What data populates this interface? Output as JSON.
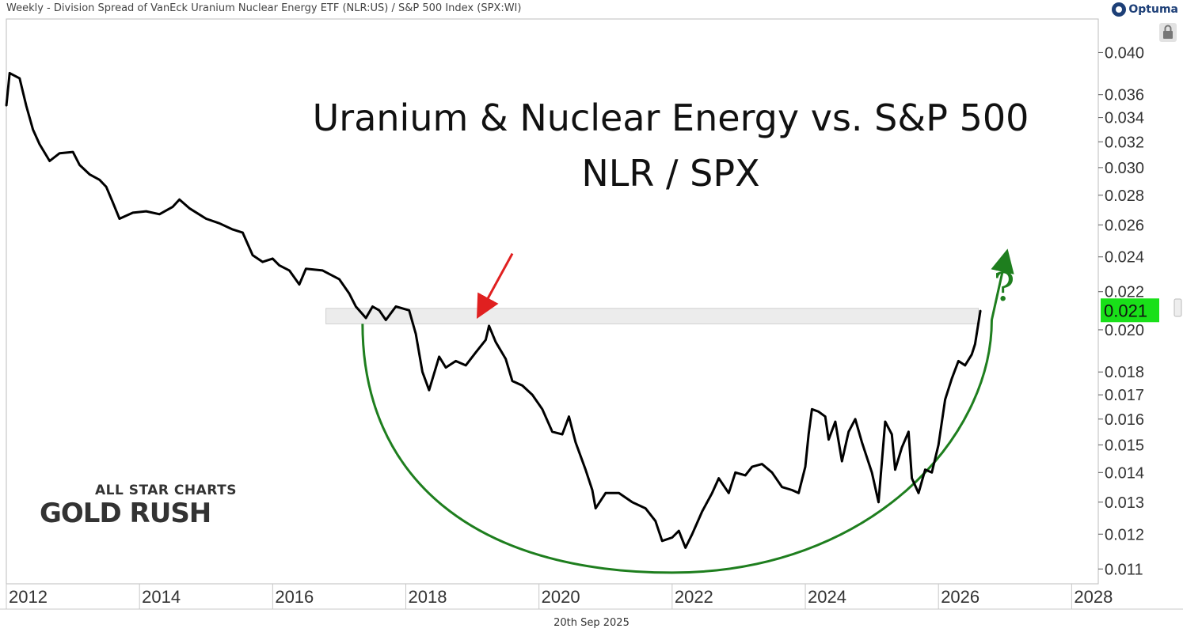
{
  "header": {
    "title": "Weekly - Division Spread of VanEck Uranium Nuclear Energy ETF (NLR:US) / S&P 500 Index (SPX:WI)",
    "logo_text": "Optuma"
  },
  "footer": {
    "date": "20th Sep 2025"
  },
  "branding": {
    "line1": "ALL STAR CHARTS",
    "line2": "GOLD RUSH"
  },
  "colors": {
    "line": "#000000",
    "arc": "#1e7e1e",
    "arrow": "#e02020",
    "last_value_bg": "#19e019",
    "band": "#ececec"
  },
  "chart_data": {
    "type": "line",
    "title": "Uranium & Nuclear Energy vs. S&P 500",
    "subtitle": "NLR / SPX",
    "xlabel": "",
    "ylabel": "",
    "y_scale": "log",
    "xlim": [
      2012.0,
      2028.4
    ],
    "ylim": [
      0.0106,
      0.0435
    ],
    "x_ticks": [
      "2012",
      "2014",
      "2016",
      "2018",
      "2020",
      "2022",
      "2024",
      "2026",
      "2028"
    ],
    "y_ticks": [
      "0.011",
      "0.012",
      "0.013",
      "0.014",
      "0.015",
      "0.016",
      "0.017",
      "0.018",
      "0.020",
      "0.022",
      "0.024",
      "0.026",
      "0.028",
      "0.030",
      "0.032",
      "0.034",
      "0.036",
      "0.040"
    ],
    "last_value": "0.021",
    "annotations": {
      "question_mark": "?"
    },
    "series": [
      {
        "values": [
          [
            2012.0,
            0.035
          ],
          [
            2012.05,
            0.038
          ],
          [
            2012.2,
            0.0375
          ],
          [
            2012.3,
            0.035
          ],
          [
            2012.4,
            0.033
          ],
          [
            2012.5,
            0.0318
          ],
          [
            2012.65,
            0.0305
          ],
          [
            2012.8,
            0.0311
          ],
          [
            2013.0,
            0.0312
          ],
          [
            2013.1,
            0.0302
          ],
          [
            2013.25,
            0.0295
          ],
          [
            2013.4,
            0.0291
          ],
          [
            2013.5,
            0.0286
          ],
          [
            2013.6,
            0.0275
          ],
          [
            2013.7,
            0.0264
          ],
          [
            2013.9,
            0.0268
          ],
          [
            2014.1,
            0.0269
          ],
          [
            2014.3,
            0.0267
          ],
          [
            2014.5,
            0.0272
          ],
          [
            2014.6,
            0.0277
          ],
          [
            2014.75,
            0.0271
          ],
          [
            2015.0,
            0.0264
          ],
          [
            2015.2,
            0.0261
          ],
          [
            2015.4,
            0.0257
          ],
          [
            2015.55,
            0.0255
          ],
          [
            2015.7,
            0.0241
          ],
          [
            2015.85,
            0.0237
          ],
          [
            2016.0,
            0.0239
          ],
          [
            2016.1,
            0.0235
          ],
          [
            2016.25,
            0.0232
          ],
          [
            2016.4,
            0.0224
          ],
          [
            2016.5,
            0.0233
          ],
          [
            2016.75,
            0.0232
          ],
          [
            2017.0,
            0.0227
          ],
          [
            2017.15,
            0.0219
          ],
          [
            2017.25,
            0.0212
          ],
          [
            2017.4,
            0.0206
          ],
          [
            2017.5,
            0.0212
          ],
          [
            2017.6,
            0.021
          ],
          [
            2017.7,
            0.0205
          ],
          [
            2017.85,
            0.0212
          ],
          [
            2018.05,
            0.021
          ],
          [
            2018.15,
            0.0198
          ],
          [
            2018.25,
            0.018
          ],
          [
            2018.35,
            0.0172
          ],
          [
            2018.5,
            0.0187
          ],
          [
            2018.6,
            0.0182
          ],
          [
            2018.75,
            0.0185
          ],
          [
            2018.9,
            0.0183
          ],
          [
            2019.05,
            0.0189
          ],
          [
            2019.2,
            0.0195
          ],
          [
            2019.25,
            0.0202
          ],
          [
            2019.35,
            0.0194
          ],
          [
            2019.5,
            0.0186
          ],
          [
            2019.6,
            0.0176
          ],
          [
            2019.75,
            0.0174
          ],
          [
            2019.9,
            0.017
          ],
          [
            2020.05,
            0.0164
          ],
          [
            2020.2,
            0.0155
          ],
          [
            2020.35,
            0.0154
          ],
          [
            2020.45,
            0.0161
          ],
          [
            2020.55,
            0.0151
          ],
          [
            2020.7,
            0.0141
          ],
          [
            2020.8,
            0.0134
          ],
          [
            2020.85,
            0.0128
          ],
          [
            2021.0,
            0.0133
          ],
          [
            2021.2,
            0.0133
          ],
          [
            2021.4,
            0.013
          ],
          [
            2021.6,
            0.0128
          ],
          [
            2021.75,
            0.0124
          ],
          [
            2021.85,
            0.0118
          ],
          [
            2022.0,
            0.0119
          ],
          [
            2022.1,
            0.0121
          ],
          [
            2022.2,
            0.0116
          ],
          [
            2022.3,
            0.012
          ],
          [
            2022.45,
            0.0127
          ],
          [
            2022.6,
            0.0133
          ],
          [
            2022.7,
            0.0138
          ],
          [
            2022.85,
            0.0133
          ],
          [
            2022.95,
            0.014
          ],
          [
            2023.1,
            0.0139
          ],
          [
            2023.2,
            0.0142
          ],
          [
            2023.35,
            0.0143
          ],
          [
            2023.5,
            0.014
          ],
          [
            2023.65,
            0.0135
          ],
          [
            2023.8,
            0.0134
          ],
          [
            2023.9,
            0.0133
          ],
          [
            2024.0,
            0.0142
          ],
          [
            2024.05,
            0.0154
          ],
          [
            2024.1,
            0.0164
          ],
          [
            2024.2,
            0.0163
          ],
          [
            2024.3,
            0.0161
          ],
          [
            2024.35,
            0.0152
          ],
          [
            2024.45,
            0.0159
          ],
          [
            2024.55,
            0.0144
          ],
          [
            2024.65,
            0.0155
          ],
          [
            2024.75,
            0.016
          ],
          [
            2024.85,
            0.0151
          ],
          [
            2025.0,
            0.014
          ],
          [
            2025.1,
            0.013
          ],
          [
            2025.2,
            0.0159
          ],
          [
            2025.3,
            0.0154
          ],
          [
            2025.35,
            0.0141
          ],
          [
            2025.45,
            0.0149
          ],
          [
            2025.55,
            0.0155
          ],
          [
            2025.6,
            0.0138
          ],
          [
            2025.7,
            0.0133
          ],
          [
            2025.8,
            0.0141
          ],
          [
            2025.9,
            0.014
          ],
          [
            2026.0,
            0.015
          ],
          [
            2026.1,
            0.0168
          ],
          [
            2026.2,
            0.0177
          ],
          [
            2026.3,
            0.0185
          ],
          [
            2026.4,
            0.0183
          ],
          [
            2026.5,
            0.0188
          ],
          [
            2026.55,
            0.0193
          ],
          [
            2026.63,
            0.021
          ]
        ]
      }
    ],
    "resistance_band": [
      0.0203,
      0.0211
    ],
    "arc": {
      "start": [
        2017.35,
        0.0203
      ],
      "bottom": [
        2022.0,
        0.0109
      ],
      "end": [
        2026.8,
        0.0205
      ],
      "arrow_tip": [
        2027.0,
        0.0238
      ]
    },
    "red_arrow": {
      "from": [
        2019.6,
        0.0242
      ],
      "to": [
        2019.15,
        0.0211
      ]
    }
  }
}
